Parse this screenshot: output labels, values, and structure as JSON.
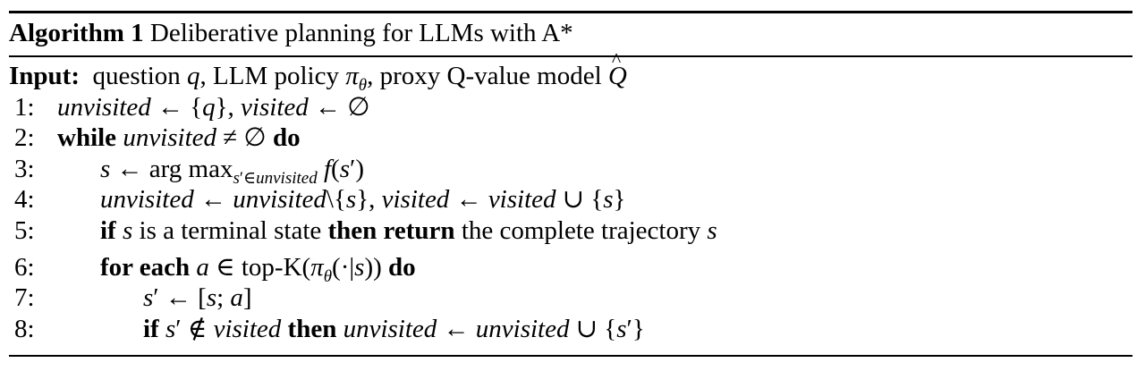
{
  "title": {
    "label": "Algorithm 1",
    "text": "Deliberative planning for LLMs with A*"
  },
  "input": {
    "label": "Input:",
    "text": "question q, LLM policy πθ, proxy Q-value model Q̂"
  },
  "lines": [
    {
      "num": "1:",
      "text": "unvisited ← {q}, visited ← ∅"
    },
    {
      "num": "2:",
      "text": "while unvisited ≠ ∅ do"
    },
    {
      "num": "3:",
      "text": "s ← arg max s′∈unvisited f(s′)"
    },
    {
      "num": "4:",
      "text": "unvisited ← unvisited\\{s}, visited ← visited ∪ {s}"
    },
    {
      "num": "5:",
      "text": "if s is a terminal state then return the complete trajectory s"
    },
    {
      "num": "6:",
      "text": "for each a ∈ top-K(πθ(·|s)) do"
    },
    {
      "num": "7:",
      "text": "s′ ← [s; a]"
    },
    {
      "num": "8:",
      "text": "if s′ ∉ visited then unvisited ← unvisited ∪ {s′}"
    }
  ]
}
